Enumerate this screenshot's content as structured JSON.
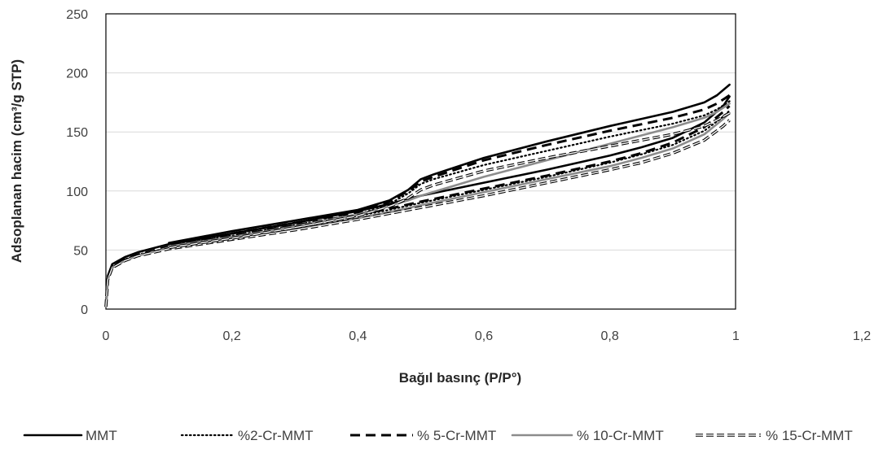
{
  "chart_data": {
    "type": "line",
    "title": "",
    "xlabel": "Bağıl basınç (P/P°)",
    "ylabel": "Adsoplanan hacim (cm³/g STP)",
    "xlim": [
      0,
      1.2
    ],
    "ylim": [
      0,
      250
    ],
    "x_ticks": [
      0,
      0.2,
      0.4,
      0.6,
      0.8,
      1,
      1.2
    ],
    "x_tick_labels": [
      "0",
      "0,2",
      "0,4",
      "0,6",
      "0,8",
      "1",
      "1,2"
    ],
    "y_ticks": [
      0,
      50,
      100,
      150,
      200,
      250
    ],
    "y_tick_labels": [
      "0",
      "50",
      "100",
      "150",
      "200",
      "250"
    ],
    "grid": "horizontal",
    "legend_position": "bottom",
    "series": [
      {
        "name": "MMT",
        "color": "#000000",
        "style": "solid",
        "adsorption": [
          [
            0.0,
            2
          ],
          [
            0.003,
            28
          ],
          [
            0.01,
            38
          ],
          [
            0.03,
            44
          ],
          [
            0.05,
            48
          ],
          [
            0.1,
            55
          ],
          [
            0.2,
            64
          ],
          [
            0.3,
            73
          ],
          [
            0.4,
            83
          ],
          [
            0.45,
            89
          ],
          [
            0.5,
            96
          ],
          [
            0.6,
            107
          ],
          [
            0.7,
            118
          ],
          [
            0.8,
            130
          ],
          [
            0.85,
            137
          ],
          [
            0.9,
            145
          ],
          [
            0.95,
            158
          ],
          [
            0.98,
            172
          ],
          [
            0.99,
            180
          ]
        ],
        "desorption": [
          [
            0.99,
            190
          ],
          [
            0.97,
            181
          ],
          [
            0.95,
            175
          ],
          [
            0.9,
            167
          ],
          [
            0.8,
            155
          ],
          [
            0.7,
            142
          ],
          [
            0.6,
            128
          ],
          [
            0.52,
            114
          ],
          [
            0.5,
            110
          ],
          [
            0.48,
            101
          ],
          [
            0.46,
            95
          ],
          [
            0.45,
            92
          ],
          [
            0.4,
            84
          ],
          [
            0.3,
            75
          ],
          [
            0.2,
            66
          ],
          [
            0.1,
            56
          ]
        ]
      },
      {
        "name": "%2-Cr-MMT",
        "color": "#000000",
        "style": "dotted",
        "adsorption": [
          [
            0.0,
            2
          ],
          [
            0.003,
            26
          ],
          [
            0.01,
            36
          ],
          [
            0.03,
            42
          ],
          [
            0.05,
            46
          ],
          [
            0.1,
            52
          ],
          [
            0.2,
            61
          ],
          [
            0.3,
            70
          ],
          [
            0.4,
            79
          ],
          [
            0.45,
            84
          ],
          [
            0.5,
            90
          ],
          [
            0.6,
            101
          ],
          [
            0.7,
            112
          ],
          [
            0.8,
            124
          ],
          [
            0.85,
            131
          ],
          [
            0.9,
            139
          ],
          [
            0.95,
            151
          ],
          [
            0.98,
            163
          ],
          [
            0.99,
            168
          ]
        ],
        "desorption": [
          [
            0.99,
            176
          ],
          [
            0.97,
            169
          ],
          [
            0.95,
            164
          ],
          [
            0.9,
            157
          ],
          [
            0.8,
            146
          ],
          [
            0.7,
            134
          ],
          [
            0.6,
            122
          ],
          [
            0.52,
            110
          ],
          [
            0.5,
            106
          ],
          [
            0.48,
            98
          ],
          [
            0.46,
            92
          ],
          [
            0.45,
            89
          ],
          [
            0.4,
            80
          ],
          [
            0.3,
            71
          ],
          [
            0.2,
            62
          ],
          [
            0.1,
            53
          ]
        ]
      },
      {
        "name": "% 5-Cr-MMT",
        "color": "#000000",
        "style": "dashed",
        "adsorption": [
          [
            0.0,
            2
          ],
          [
            0.003,
            26
          ],
          [
            0.01,
            36
          ],
          [
            0.03,
            42
          ],
          [
            0.05,
            46
          ],
          [
            0.1,
            53
          ],
          [
            0.2,
            62
          ],
          [
            0.3,
            71
          ],
          [
            0.4,
            80
          ],
          [
            0.45,
            85
          ],
          [
            0.5,
            91
          ],
          [
            0.6,
            102
          ],
          [
            0.7,
            113
          ],
          [
            0.8,
            125
          ],
          [
            0.85,
            132
          ],
          [
            0.9,
            141
          ],
          [
            0.95,
            154
          ],
          [
            0.98,
            167
          ],
          [
            0.99,
            172
          ]
        ],
        "desorption": [
          [
            0.99,
            181
          ],
          [
            0.97,
            174
          ],
          [
            0.95,
            169
          ],
          [
            0.9,
            162
          ],
          [
            0.8,
            151
          ],
          [
            0.7,
            139
          ],
          [
            0.6,
            126
          ],
          [
            0.52,
            112
          ],
          [
            0.5,
            108
          ],
          [
            0.48,
            100
          ],
          [
            0.46,
            94
          ],
          [
            0.45,
            91
          ],
          [
            0.4,
            82
          ],
          [
            0.3,
            73
          ],
          [
            0.2,
            64
          ],
          [
            0.1,
            54
          ]
        ]
      },
      {
        "name": "% 10-Cr-MMT",
        "color": "#8c8c8c",
        "style": "solid",
        "adsorption": [
          [
            0.0,
            2
          ],
          [
            0.003,
            25
          ],
          [
            0.01,
            35
          ],
          [
            0.03,
            41
          ],
          [
            0.05,
            45
          ],
          [
            0.1,
            52
          ],
          [
            0.2,
            60
          ],
          [
            0.3,
            68
          ],
          [
            0.4,
            77
          ],
          [
            0.45,
            82
          ],
          [
            0.5,
            88
          ],
          [
            0.6,
            99
          ],
          [
            0.7,
            110
          ],
          [
            0.8,
            121
          ],
          [
            0.85,
            128
          ],
          [
            0.9,
            136
          ],
          [
            0.95,
            148
          ],
          [
            0.98,
            161
          ],
          [
            0.99,
            166
          ]
        ],
        "desorption": [
          [
            0.99,
            174
          ],
          [
            0.97,
            167
          ],
          [
            0.95,
            162
          ],
          [
            0.9,
            154
          ],
          [
            0.8,
            140
          ],
          [
            0.7,
            126
          ],
          [
            0.6,
            112
          ],
          [
            0.5,
            96
          ],
          [
            0.48,
            92
          ],
          [
            0.46,
            89
          ],
          [
            0.45,
            87
          ],
          [
            0.4,
            80
          ],
          [
            0.3,
            70
          ],
          [
            0.2,
            61
          ],
          [
            0.1,
            53
          ]
        ]
      },
      {
        "name": "% 15-Cr-MMT",
        "color": "#000000",
        "style": "double",
        "adsorption": [
          [
            0.0,
            2
          ],
          [
            0.003,
            25
          ],
          [
            0.01,
            35
          ],
          [
            0.03,
            41
          ],
          [
            0.05,
            45
          ],
          [
            0.1,
            51
          ],
          [
            0.2,
            59
          ],
          [
            0.3,
            67
          ],
          [
            0.4,
            76
          ],
          [
            0.45,
            81
          ],
          [
            0.5,
            86
          ],
          [
            0.6,
            96
          ],
          [
            0.7,
            107
          ],
          [
            0.8,
            118
          ],
          [
            0.85,
            124
          ],
          [
            0.9,
            132
          ],
          [
            0.95,
            143
          ],
          [
            0.98,
            155
          ],
          [
            0.99,
            160
          ]
        ],
        "desorption": [
          [
            0.99,
            166
          ],
          [
            0.97,
            160
          ],
          [
            0.95,
            155
          ],
          [
            0.9,
            148
          ],
          [
            0.8,
            138
          ],
          [
            0.7,
            128
          ],
          [
            0.6,
            117
          ],
          [
            0.52,
            105
          ],
          [
            0.5,
            101
          ],
          [
            0.48,
            94
          ],
          [
            0.46,
            89
          ],
          [
            0.45,
            87
          ],
          [
            0.4,
            79
          ],
          [
            0.3,
            69
          ],
          [
            0.2,
            60
          ],
          [
            0.1,
            52
          ]
        ]
      }
    ]
  }
}
